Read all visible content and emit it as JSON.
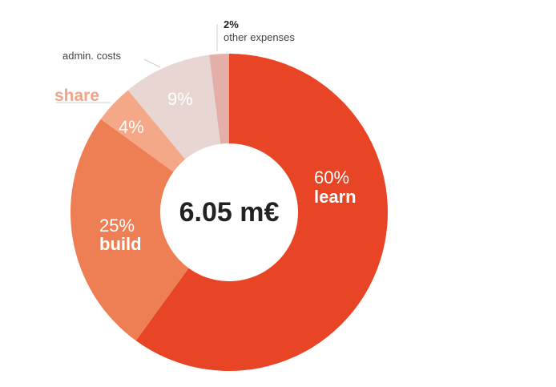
{
  "chart_data": {
    "type": "pie",
    "center_label": "6.05 m€",
    "slices": [
      {
        "name": "learn",
        "value": 60,
        "label": "60%",
        "color": "#E84526"
      },
      {
        "name": "build",
        "value": 25,
        "label": "25%",
        "color": "#EE7F55"
      },
      {
        "name": "share",
        "value": 4,
        "label": "4%",
        "color": "#F4A887"
      },
      {
        "name": "admin. costs",
        "value": 9,
        "label": "9%",
        "color": "#E8D6D3"
      },
      {
        "name": "other expenses",
        "value": 2,
        "label": "2%",
        "color": "#E3AFA8"
      }
    ]
  }
}
